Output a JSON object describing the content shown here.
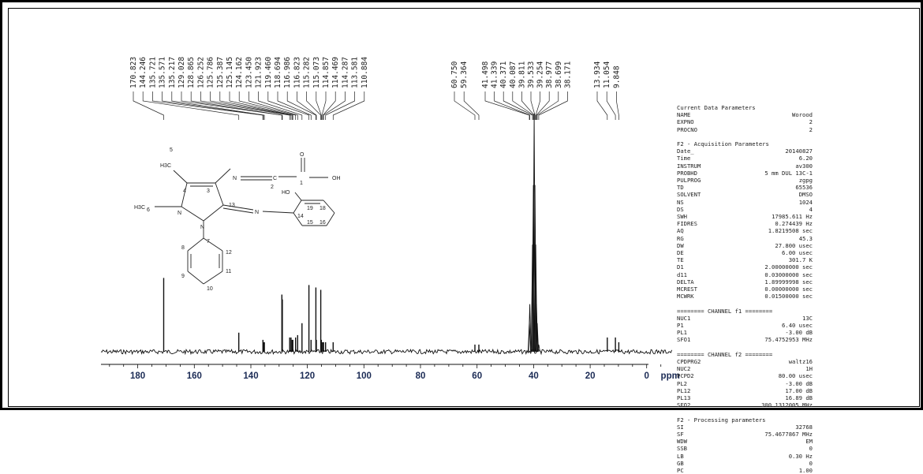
{
  "chart_data": {
    "type": "line",
    "title": "",
    "xlabel": "ppm",
    "ylabel": "",
    "xlim": [
      193,
      -9
    ],
    "x_ticks": [
      180,
      160,
      140,
      120,
      100,
      80,
      60,
      40,
      20,
      0
    ],
    "x_tick_labels": [
      "180",
      "160",
      "140",
      "120",
      "100",
      "80",
      "60",
      "40",
      "20",
      "0"
    ],
    "peaks": [
      {
        "ppm": 170.823,
        "height": 0.31
      },
      {
        "ppm": 144.246,
        "height": 0.08
      },
      {
        "ppm": 135.721,
        "height": 0.05
      },
      {
        "ppm": 135.571,
        "height": 0.04
      },
      {
        "ppm": 135.217,
        "height": 0.04
      },
      {
        "ppm": 129.028,
        "height": 0.24
      },
      {
        "ppm": 128.865,
        "height": 0.22
      },
      {
        "ppm": 126.252,
        "height": 0.06
      },
      {
        "ppm": 125.786,
        "height": 0.06
      },
      {
        "ppm": 125.387,
        "height": 0.05
      },
      {
        "ppm": 125.145,
        "height": 0.05
      },
      {
        "ppm": 124.162,
        "height": 0.06
      },
      {
        "ppm": 123.45,
        "height": 0.07
      },
      {
        "ppm": 121.923,
        "height": 0.12
      },
      {
        "ppm": 119.46,
        "height": 0.28
      },
      {
        "ppm": 118.694,
        "height": 0.05
      },
      {
        "ppm": 116.986,
        "height": 0.27
      },
      {
        "ppm": 116.823,
        "height": 0.05
      },
      {
        "ppm": 115.282,
        "height": 0.26
      },
      {
        "ppm": 115.073,
        "height": 0.05
      },
      {
        "ppm": 114.857,
        "height": 0.04
      },
      {
        "ppm": 114.469,
        "height": 0.04
      },
      {
        "ppm": 114.287,
        "height": 0.04
      },
      {
        "ppm": 113.581,
        "height": 0.04
      },
      {
        "ppm": 110.884,
        "height": 0.04
      },
      {
        "ppm": 60.75,
        "height": 0.03
      },
      {
        "ppm": 59.364,
        "height": 0.03
      },
      {
        "ppm": 41.498,
        "height": 0.12
      },
      {
        "ppm": 41.339,
        "height": 0.2
      },
      {
        "ppm": 40.371,
        "height": 0.45
      },
      {
        "ppm": 40.087,
        "height": 0.7
      },
      {
        "ppm": 39.811,
        "height": 1.0
      },
      {
        "ppm": 39.533,
        "height": 0.7
      },
      {
        "ppm": 39.254,
        "height": 0.45
      },
      {
        "ppm": 38.977,
        "height": 0.2
      },
      {
        "ppm": 38.699,
        "height": 0.12
      },
      {
        "ppm": 38.171,
        "height": 0.03
      },
      {
        "ppm": 13.934,
        "height": 0.06
      },
      {
        "ppm": 11.054,
        "height": 0.06
      },
      {
        "ppm": 9.848,
        "height": 0.04
      }
    ],
    "peak_labels": [
      "170.823",
      "144.246",
      "135.721",
      "135.571",
      "135.217",
      "129.028",
      "128.865",
      "126.252",
      "125.786",
      "125.387",
      "125.145",
      "124.162",
      "123.450",
      "121.923",
      "119.460",
      "118.694",
      "116.986",
      "116.823",
      "115.282",
      "115.073",
      "114.857",
      "114.469",
      "114.287",
      "113.581",
      "110.884",
      "60.750",
      "59.364",
      "41.498",
      "41.339",
      "40.371",
      "40.087",
      "39.811",
      "39.533",
      "39.254",
      "38.977",
      "38.699",
      "38.171",
      "13.934",
      "11.054",
      "9.848"
    ]
  },
  "molecule": {
    "atoms": [
      {
        "label": "5"
      },
      {
        "label": "H3C"
      },
      {
        "label": "4"
      },
      {
        "label": "3"
      },
      {
        "label": "N"
      },
      {
        "label": "2"
      },
      {
        "label": "C"
      },
      {
        "label": "1"
      },
      {
        "label": "O"
      },
      {
        "label": "OH"
      },
      {
        "label": "H3C"
      },
      {
        "label": "6"
      },
      {
        "label": "N"
      },
      {
        "label": "N"
      },
      {
        "label": "13"
      },
      {
        "label": "N"
      },
      {
        "label": "HO"
      },
      {
        "label": "19"
      },
      {
        "label": "18"
      },
      {
        "label": "14"
      },
      {
        "label": "15"
      },
      {
        "label": "16"
      },
      {
        "label": "7"
      },
      {
        "label": "8"
      },
      {
        "label": "9"
      },
      {
        "label": "10"
      },
      {
        "label": "11"
      },
      {
        "label": "12"
      }
    ]
  },
  "parameters": [
    {
      "type": "header",
      "text": "Current Data Parameters"
    },
    {
      "type": "row",
      "key": "NAME",
      "value": "Worood"
    },
    {
      "type": "row",
      "key": "EXPNO",
      "value": "2"
    },
    {
      "type": "row",
      "key": "PROCNO",
      "value": "2"
    },
    {
      "type": "gap"
    },
    {
      "type": "header",
      "text": "F2 - Acquisition Parameters"
    },
    {
      "type": "row",
      "key": "Date_",
      "value": "20140827"
    },
    {
      "type": "row",
      "key": "Time",
      "value": "6.20"
    },
    {
      "type": "row",
      "key": "INSTRUM",
      "value": "av300"
    },
    {
      "type": "row",
      "key": "PROBHD",
      "value": "5 mm DUL 13C-1"
    },
    {
      "type": "row",
      "key": "PULPROG",
      "value": "zgpg"
    },
    {
      "type": "row",
      "key": "TD",
      "value": "65536"
    },
    {
      "type": "row",
      "key": "SOLVENT",
      "value": "DMSO"
    },
    {
      "type": "row",
      "key": "NS",
      "value": "1024"
    },
    {
      "type": "row",
      "key": "DS",
      "value": "4"
    },
    {
      "type": "row",
      "key": "SWH",
      "value": "17985.611 Hz"
    },
    {
      "type": "row",
      "key": "FIDRES",
      "value": "0.274439 Hz"
    },
    {
      "type": "row",
      "key": "AQ",
      "value": "1.8219508 sec"
    },
    {
      "type": "row",
      "key": "RG",
      "value": "45.3"
    },
    {
      "type": "row",
      "key": "DW",
      "value": "27.800 usec"
    },
    {
      "type": "row",
      "key": "DE",
      "value": "6.00 usec"
    },
    {
      "type": "row",
      "key": "TE",
      "value": "301.7 K"
    },
    {
      "type": "row",
      "key": "D1",
      "value": "2.00000000 sec"
    },
    {
      "type": "row",
      "key": "d11",
      "value": "0.03000000 sec"
    },
    {
      "type": "row",
      "key": "DELTA",
      "value": "1.89999998 sec"
    },
    {
      "type": "row",
      "key": "MCREST",
      "value": "0.00000000 sec"
    },
    {
      "type": "row",
      "key": "MCWRK",
      "value": "0.01500000 sec"
    },
    {
      "type": "gap"
    },
    {
      "type": "header",
      "text": "======== CHANNEL f1 ========"
    },
    {
      "type": "row",
      "key": "NUC1",
      "value": "13C"
    },
    {
      "type": "row",
      "key": "P1",
      "value": "6.40 usec"
    },
    {
      "type": "row",
      "key": "PL1",
      "value": "-3.00 dB"
    },
    {
      "type": "row",
      "key": "SFO1",
      "value": "75.4752953 MHz"
    },
    {
      "type": "gap"
    },
    {
      "type": "header",
      "text": "======== CHANNEL f2 ========"
    },
    {
      "type": "row",
      "key": "CPDPRG2",
      "value": "waltz16"
    },
    {
      "type": "row",
      "key": "NUC2",
      "value": "1H"
    },
    {
      "type": "row",
      "key": "PCPD2",
      "value": "80.00 usec"
    },
    {
      "type": "row",
      "key": "PL2",
      "value": "-3.00 dB"
    },
    {
      "type": "row",
      "key": "PL12",
      "value": "17.00 dB"
    },
    {
      "type": "row",
      "key": "PL13",
      "value": "16.89 dB"
    },
    {
      "type": "row",
      "key": "SFO2",
      "value": "300.1312005 MHz"
    },
    {
      "type": "gap"
    },
    {
      "type": "header",
      "text": "F2 - Processing parameters"
    },
    {
      "type": "row",
      "key": "SI",
      "value": "32768"
    },
    {
      "type": "row",
      "key": "SF",
      "value": "75.4677867 MHz"
    },
    {
      "type": "row",
      "key": "WDW",
      "value": "EM"
    },
    {
      "type": "row",
      "key": "SSB",
      "value": "0"
    },
    {
      "type": "row",
      "key": "LB",
      "value": "0.30 Hz"
    },
    {
      "type": "row",
      "key": "GB",
      "value": "0"
    },
    {
      "type": "row",
      "key": "PC",
      "value": "1.00"
    }
  ]
}
